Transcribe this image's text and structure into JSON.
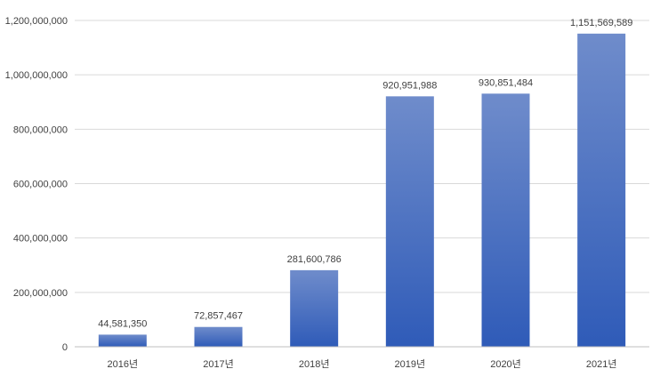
{
  "chart_data": {
    "type": "bar",
    "categories": [
      "2016년",
      "2017년",
      "2018년",
      "2019년",
      "2020년",
      "2021년"
    ],
    "values": [
      44581350,
      72857467,
      281600786,
      920951988,
      930851484,
      1151569589
    ],
    "data_labels": [
      "44,581,350",
      "72,857,467",
      "281,600,786",
      "920,951,988",
      "930,851,484",
      "1,151,569,589"
    ],
    "yticks": [
      0,
      200000000,
      400000000,
      600000000,
      800000000,
      1000000000,
      1200000000
    ],
    "ytick_labels": [
      "0",
      "200,000,000",
      "400,000,000",
      "600,000,000",
      "800,000,000",
      "1,000,000,000",
      "1,200,000,000"
    ],
    "ylim": [
      0,
      1200000000
    ],
    "grid": true,
    "legend": "none",
    "title": "",
    "xlabel": "",
    "ylabel": "",
    "colors": {
      "bar_top": "#6F8CCB",
      "bar_bottom": "#2F5BB8",
      "grid": "#D9D9D9",
      "axis": "#BFBFBF",
      "text": "#404040"
    }
  }
}
